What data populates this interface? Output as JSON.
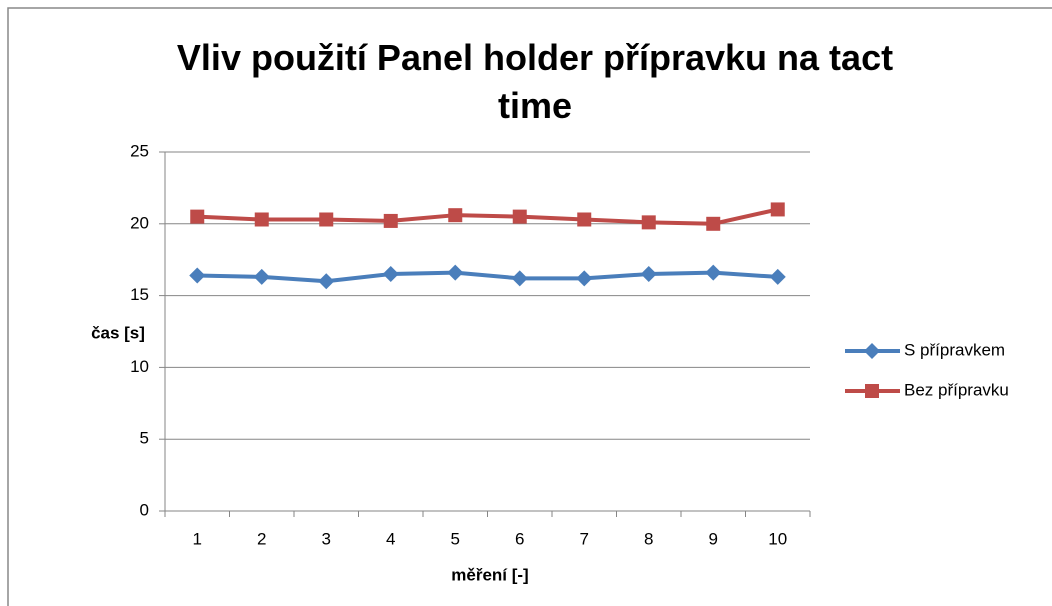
{
  "chart_data": {
    "type": "line",
    "title": "Vliv použití Panel holder přípravku na tact time",
    "x_label": "měření [-]",
    "y_label": "čas [s]",
    "categories": [
      "1",
      "2",
      "3",
      "4",
      "5",
      "6",
      "7",
      "8",
      "9",
      "10"
    ],
    "series": [
      {
        "name": "S přípravkem",
        "color": "#4a7ebb",
        "marker": "diamond",
        "values": [
          16.4,
          16.3,
          16.0,
          16.5,
          16.6,
          16.2,
          16.2,
          16.5,
          16.6,
          16.3
        ]
      },
      {
        "name": "Bez přípravku",
        "color": "#be4b48",
        "marker": "square",
        "values": [
          20.5,
          20.3,
          20.3,
          20.2,
          20.6,
          20.5,
          20.3,
          20.1,
          20.0,
          21.0
        ]
      }
    ],
    "ylim": [
      0,
      25
    ],
    "yticks": [
      0,
      5,
      10,
      15,
      20,
      25
    ],
    "grid": true,
    "legend": "right"
  }
}
